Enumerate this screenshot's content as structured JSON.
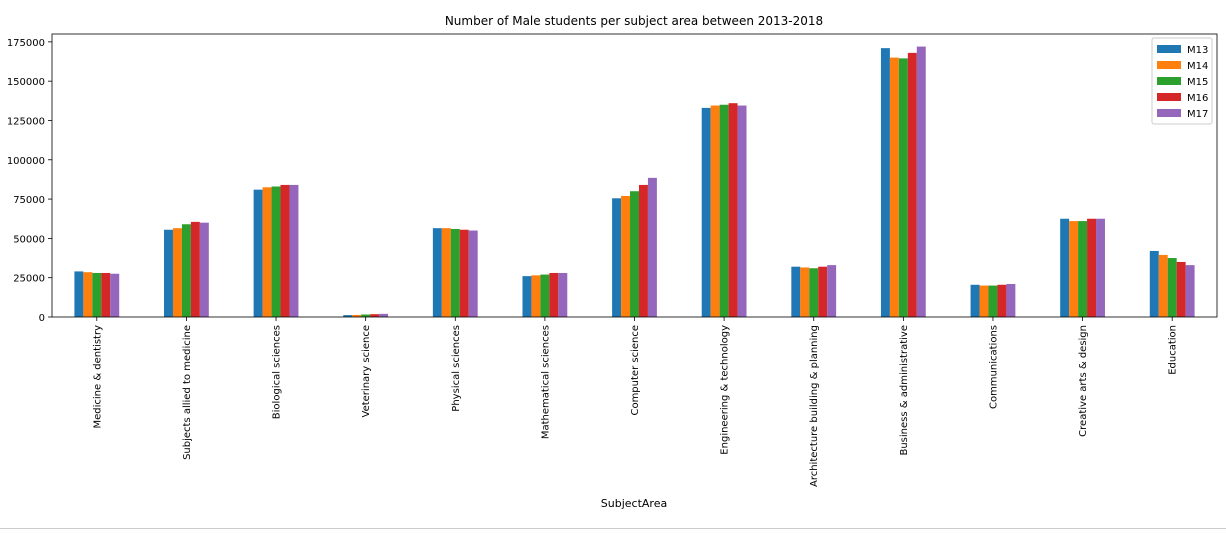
{
  "chart_data": {
    "type": "bar",
    "title": "Number of Male students per subject area between 2013-2018",
    "xlabel": "SubjectArea",
    "ylabel": "",
    "ylim": [
      0,
      180000
    ],
    "yticks": [
      0,
      25000,
      50000,
      75000,
      100000,
      125000,
      150000,
      175000
    ],
    "grid": false,
    "legend_position": "top-right",
    "categories": [
      "Medicine & dentistry",
      "Subjects allied to medicine",
      "Biological sciences",
      "Veterinary science",
      "Physical sciences",
      "Mathematical sciences",
      "Computer science",
      "Engineering & technology",
      "Architecture building & planning",
      "Business & administrative",
      "Communications",
      "Creative arts & design",
      "Education"
    ],
    "series": [
      {
        "name": "M13",
        "color": "#1f77b4",
        "values": [
          29000,
          55500,
          81000,
          1200,
          56500,
          26000,
          75500,
          133000,
          32000,
          171000,
          20500,
          62500,
          42000
        ]
      },
      {
        "name": "M14",
        "color": "#ff7f0e",
        "values": [
          28500,
          56500,
          82500,
          1300,
          56500,
          26500,
          77000,
          134500,
          31500,
          165000,
          20000,
          61000,
          39500
        ]
      },
      {
        "name": "M15",
        "color": "#2ca02c",
        "values": [
          28000,
          59000,
          83000,
          1600,
          56000,
          27000,
          80000,
          135000,
          31000,
          164500,
          20000,
          61000,
          37500
        ]
      },
      {
        "name": "M16",
        "color": "#d62728",
        "values": [
          28000,
          60500,
          84000,
          1800,
          55500,
          28000,
          84000,
          136000,
          32000,
          168000,
          20500,
          62500,
          35000
        ]
      },
      {
        "name": "M17",
        "color": "#9467bd",
        "values": [
          27500,
          60000,
          84000,
          2000,
          55000,
          28000,
          88500,
          134500,
          33000,
          172000,
          21000,
          62500,
          33000
        ]
      }
    ]
  }
}
